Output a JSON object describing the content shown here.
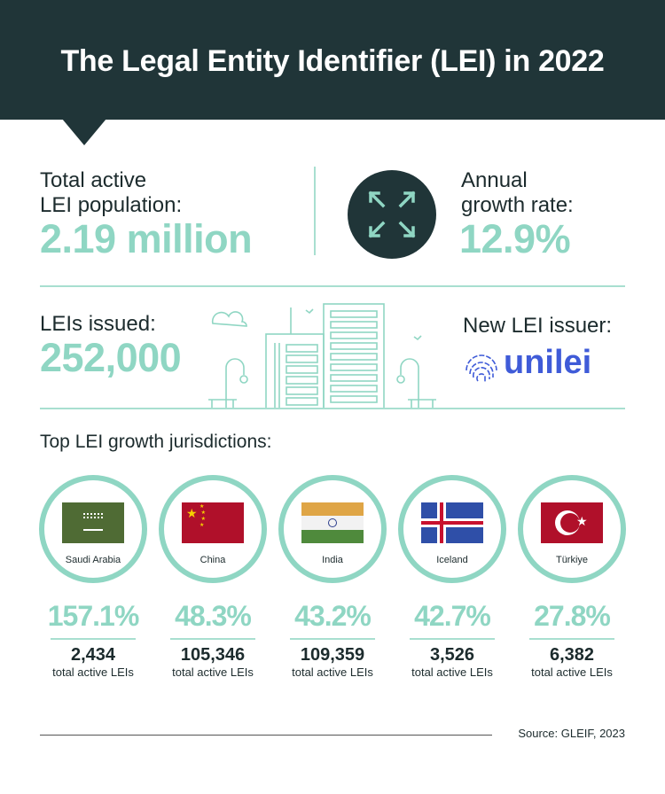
{
  "title": "The Legal Entity Identifier (LEI) in 2022",
  "colors": {
    "header": "#203538",
    "accent": "#8fd6c3",
    "unilei_blue": "#3f5bd8"
  },
  "stats": {
    "population_label_1": "Total active",
    "population_label_2": "LEI population:",
    "population_value": "2.19 million",
    "growth_label_1": "Annual",
    "growth_label_2": "growth rate:",
    "growth_value": "12.9%",
    "growth_icon": "expand-arrows-icon",
    "issued_label": "LEIs issued:",
    "issued_value": "252,000",
    "issuer_label": "New LEI issuer:",
    "issuer_logo": "unilei"
  },
  "jurisdictions_title": "Top LEI growth jurisdictions:",
  "jurisdictions": [
    {
      "country": "Saudi Arabia",
      "growth": "157.1%",
      "total": "2,434",
      "total_label": "total active LEIs"
    },
    {
      "country": "China",
      "growth": "48.3%",
      "total": "105,346",
      "total_label": "total active LEIs"
    },
    {
      "country": "India",
      "growth": "43.2%",
      "total": "109,359",
      "total_label": "total active LEIs"
    },
    {
      "country": "Iceland",
      "growth": "42.7%",
      "total": "3,526",
      "total_label": "total active LEIs"
    },
    {
      "country": "Türkiye",
      "growth": "27.8%",
      "total": "6,382",
      "total_label": "total active LEIs"
    }
  ],
  "source": "Source: GLEIF, 2023"
}
